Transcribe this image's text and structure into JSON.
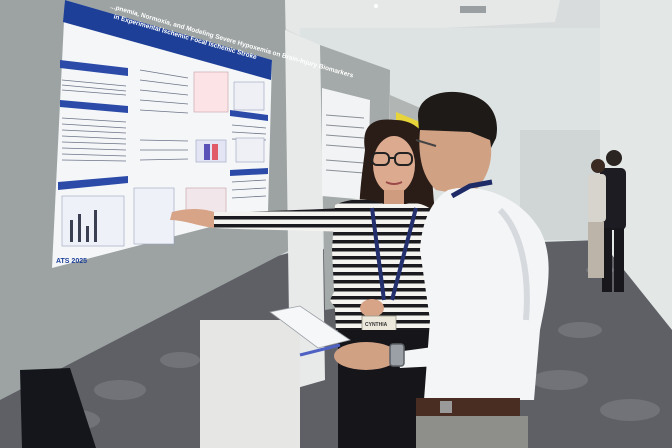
{
  "poster": {
    "title_line_1": "...pnemia, Normoxia, and Modeling Severe Hypoxemia on Brain-Injury Biomarkers",
    "title_line_2": "in Experimental Ischemic Focal Ischemic Stroke",
    "footer_logo": "ATS 2025"
  },
  "badge": {
    "name": "CYNTHIA"
  },
  "colors": {
    "poster_header": "#1d3f97",
    "board": "#9ca3a2",
    "carpet": "#5f5f66",
    "wall": "#dde3e2"
  }
}
